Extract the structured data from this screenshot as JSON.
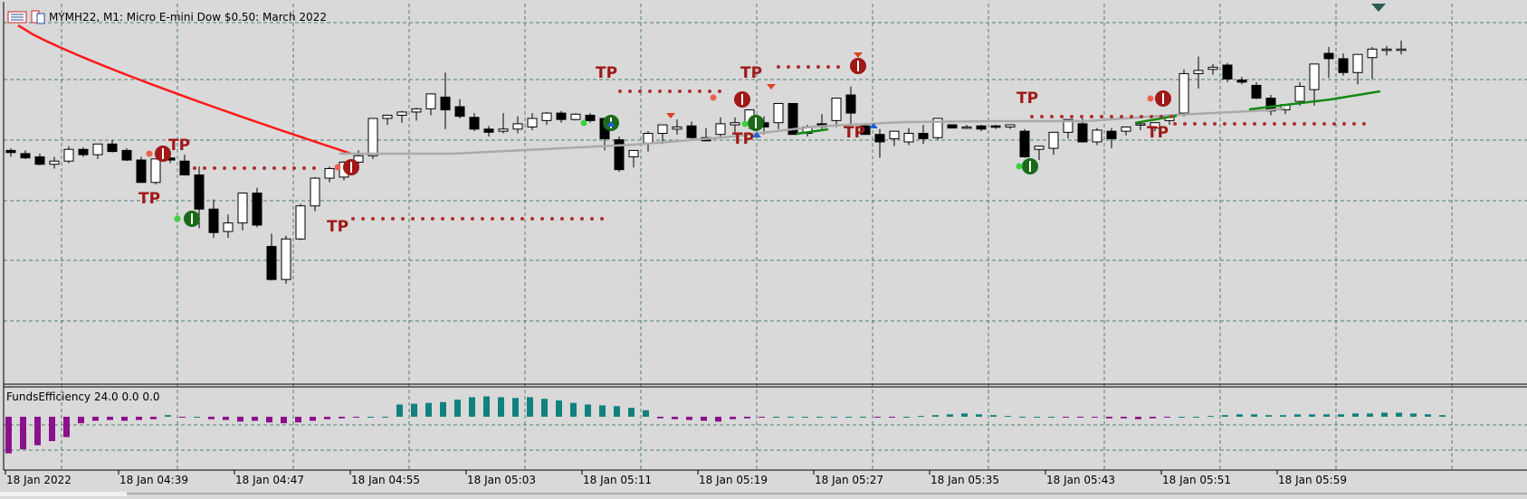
{
  "window": {
    "symbol_title": "MYMH22, M1:  Micro E-mini Dow $0.50: March 2022",
    "icons": [
      "chart-settings-icon",
      "trade-panel-icon"
    ]
  },
  "indicator": {
    "label": "FundsEfficiency 24.0 0.0 0.0"
  },
  "colors": {
    "background": "#d9d9d9",
    "grid": "#4f7f6f",
    "bull_candle": "#ffffff",
    "bear_candle": "#000000",
    "ma_gray": "#aaaaaa",
    "ma_red": "#ff1a1a",
    "ma_green": "#138a13",
    "tp_text": "#a01818",
    "tp_dots": "#b03030",
    "hist_pos": "#138080",
    "hist_neg": "#8b108b"
  },
  "chart_data": {
    "type": "candlestick",
    "x_tick_labels": [
      "18 Jan 2022",
      "18 Jan 04:39",
      "18 Jan 04:47",
      "18 Jan 04:55",
      "18 Jan 05:03",
      "18 Jan 05:11",
      "18 Jan 05:19",
      "18 Jan 05:27",
      "18 Jan 05:35",
      "18 Jan 05:43",
      "18 Jan 05:51",
      "18 Jan 05:59"
    ],
    "grid": true,
    "price_ylim": [
      0,
      100
    ],
    "candles": [
      {
        "o": 20,
        "h": 22,
        "l": 14,
        "c": 18
      },
      {
        "o": 17,
        "h": 20,
        "l": 12,
        "c": 13
      },
      {
        "o": 14,
        "h": 17,
        "l": 6,
        "c": 7
      },
      {
        "o": 7,
        "h": 14,
        "l": 3,
        "c": 10
      },
      {
        "o": 10,
        "h": 24,
        "l": 8,
        "c": 21
      },
      {
        "o": 21,
        "h": 23,
        "l": 14,
        "c": 16
      },
      {
        "o": 16,
        "h": 26,
        "l": 12,
        "c": 26
      },
      {
        "o": 26,
        "h": 30,
        "l": 18,
        "c": 19
      },
      {
        "o": 20,
        "h": 22,
        "l": 10,
        "c": 11
      },
      {
        "o": 11,
        "h": 14,
        "l": -10,
        "c": -10
      },
      {
        "o": -10,
        "h": 12,
        "l": -12,
        "c": 12
      },
      {
        "o": 13,
        "h": 16,
        "l": 8,
        "c": 11
      },
      {
        "o": 10,
        "h": 16,
        "l": -3,
        "c": -3
      },
      {
        "o": -3,
        "h": 5,
        "l": -53,
        "c": -35
      },
      {
        "o": -35,
        "h": -26,
        "l": -62,
        "c": -57
      },
      {
        "o": -56,
        "h": -40,
        "l": -62,
        "c": -48
      },
      {
        "o": -48,
        "h": -20,
        "l": -55,
        "c": -20
      },
      {
        "o": -20,
        "h": -15,
        "l": -52,
        "c": -50
      },
      {
        "o": -70,
        "h": -58,
        "l": -102,
        "c": -101
      },
      {
        "o": -101,
        "h": -60,
        "l": -105,
        "c": -63
      },
      {
        "o": -63,
        "h": -30,
        "l": -64,
        "c": -32
      },
      {
        "o": -32,
        "h": -5,
        "l": -37,
        "c": -6
      },
      {
        "o": -6,
        "h": 5,
        "l": -10,
        "c": 3
      },
      {
        "o": -5,
        "h": 10,
        "l": -8,
        "c": 9
      },
      {
        "o": 9,
        "h": 20,
        "l": 4,
        "c": 15
      },
      {
        "o": 15,
        "h": 50,
        "l": 12,
        "c": 50
      },
      {
        "o": 50,
        "h": 53,
        "l": 44,
        "c": 53
      },
      {
        "o": 53,
        "h": 57,
        "l": 46,
        "c": 56
      },
      {
        "o": 56,
        "h": 60,
        "l": 48,
        "c": 59
      },
      {
        "o": 59,
        "h": 73,
        "l": 53,
        "c": 73
      },
      {
        "o": 70,
        "h": 93,
        "l": 40,
        "c": 58
      },
      {
        "o": 61,
        "h": 68,
        "l": 50,
        "c": 52
      },
      {
        "o": 51,
        "h": 55,
        "l": 38,
        "c": 40
      },
      {
        "o": 40,
        "h": 43,
        "l": 33,
        "c": 37
      },
      {
        "o": 38,
        "h": 55,
        "l": 36,
        "c": 40
      },
      {
        "o": 40,
        "h": 52,
        "l": 36,
        "c": 45
      },
      {
        "o": 42,
        "h": 55,
        "l": 39,
        "c": 50
      },
      {
        "o": 48,
        "h": 56,
        "l": 44,
        "c": 55
      },
      {
        "o": 55,
        "h": 57,
        "l": 46,
        "c": 49
      },
      {
        "o": 49,
        "h": 55,
        "l": 48,
        "c": 54
      },
      {
        "o": 53,
        "h": 55,
        "l": 46,
        "c": 48
      },
      {
        "o": 50,
        "h": 50,
        "l": 20,
        "c": 31
      },
      {
        "o": 30,
        "h": 33,
        "l": 0,
        "c": 2
      },
      {
        "o": 14,
        "h": 20,
        "l": 4,
        "c": 20
      },
      {
        "o": 27,
        "h": 38,
        "l": 19,
        "c": 36
      },
      {
        "o": 36,
        "h": 44,
        "l": 26,
        "c": 44
      },
      {
        "o": 40,
        "h": 49,
        "l": 35,
        "c": 42
      },
      {
        "o": 43,
        "h": 47,
        "l": 31,
        "c": 32
      },
      {
        "o": 32,
        "h": 41,
        "l": 29,
        "c": 29
      },
      {
        "o": 35,
        "h": 51,
        "l": 31,
        "c": 45
      },
      {
        "o": 44,
        "h": 51,
        "l": 37,
        "c": 46
      },
      {
        "o": 45,
        "h": 58,
        "l": 40,
        "c": 58
      },
      {
        "o": 46,
        "h": 52,
        "l": 35,
        "c": 42
      },
      {
        "o": 46,
        "h": 64,
        "l": 40,
        "c": 64
      },
      {
        "o": 64,
        "h": 64,
        "l": 35,
        "c": 35
      },
      {
        "o": 36,
        "h": 44,
        "l": 33,
        "c": 42
      },
      {
        "o": 45,
        "h": 54,
        "l": 40,
        "c": 42
      },
      {
        "o": 48,
        "h": 69,
        "l": 42,
        "c": 69
      },
      {
        "o": 72,
        "h": 80,
        "l": 45,
        "c": 55
      },
      {
        "o": 43,
        "h": 45,
        "l": 35,
        "c": 35
      },
      {
        "o": 35,
        "h": 40,
        "l": 13,
        "c": 28
      },
      {
        "o": 31,
        "h": 38,
        "l": 24,
        "c": 38
      },
      {
        "o": 28,
        "h": 41,
        "l": 25,
        "c": 36
      },
      {
        "o": 36,
        "h": 44,
        "l": 26,
        "c": 31
      },
      {
        "o": 32,
        "h": 50,
        "l": 30,
        "c": 50
      },
      {
        "o": 44,
        "h": 44,
        "l": 41,
        "c": 41
      },
      {
        "o": 42,
        "h": 44,
        "l": 40,
        "c": 42
      },
      {
        "o": 43,
        "h": 44,
        "l": 38,
        "c": 40
      },
      {
        "o": 43,
        "h": 44,
        "l": 40,
        "c": 42
      },
      {
        "o": 42,
        "h": 44,
        "l": 40,
        "c": 44
      },
      {
        "o": 38,
        "h": 40,
        "l": 13,
        "c": 14
      },
      {
        "o": 21,
        "h": 24,
        "l": 11,
        "c": 24
      },
      {
        "o": 22,
        "h": 37,
        "l": 16,
        "c": 37
      },
      {
        "o": 37,
        "h": 49,
        "l": 31,
        "c": 49
      },
      {
        "o": 45,
        "h": 50,
        "l": 28,
        "c": 28
      },
      {
        "o": 28,
        "h": 41,
        "l": 25,
        "c": 39
      },
      {
        "o": 38,
        "h": 41,
        "l": 22,
        "c": 31
      },
      {
        "o": 38,
        "h": 42,
        "l": 34,
        "c": 42
      },
      {
        "o": 44,
        "h": 46,
        "l": 39,
        "c": 45
      },
      {
        "o": 41,
        "h": 46,
        "l": 38,
        "c": 46
      },
      {
        "o": 48,
        "h": 52,
        "l": 44,
        "c": 52
      },
      {
        "o": 55,
        "h": 96,
        "l": 52,
        "c": 92
      },
      {
        "o": 92,
        "h": 108,
        "l": 78,
        "c": 95
      },
      {
        "o": 96,
        "h": 101,
        "l": 91,
        "c": 98
      },
      {
        "o": 100,
        "h": 102,
        "l": 84,
        "c": 87
      },
      {
        "o": 86,
        "h": 89,
        "l": 82,
        "c": 84
      },
      {
        "o": 81,
        "h": 84,
        "l": 68,
        "c": 69
      },
      {
        "o": 69,
        "h": 72,
        "l": 53,
        "c": 57
      },
      {
        "o": 58,
        "h": 63,
        "l": 54,
        "c": 63
      },
      {
        "o": 66,
        "h": 84,
        "l": 62,
        "c": 80
      },
      {
        "o": 77,
        "h": 101,
        "l": 62,
        "c": 101
      },
      {
        "o": 111,
        "h": 117,
        "l": 88,
        "c": 106
      },
      {
        "o": 106,
        "h": 111,
        "l": 90,
        "c": 93
      },
      {
        "o": 93,
        "h": 110,
        "l": 82,
        "c": 110
      },
      {
        "o": 107,
        "h": 117,
        "l": 87,
        "c": 115
      },
      {
        "o": 115,
        "h": 118,
        "l": 109,
        "c": 115
      },
      {
        "o": 115,
        "h": 123,
        "l": 110,
        "c": 115
      }
    ],
    "histogram": [
      -45,
      -40,
      -35,
      -30,
      -25,
      -8,
      -5,
      -4,
      -5,
      -4,
      -3,
      2,
      -1,
      0,
      -3,
      -4,
      -6,
      -5,
      -7,
      -8,
      -7,
      -5,
      -3,
      -2,
      -1,
      0,
      0,
      15,
      16,
      17,
      18,
      21,
      24,
      25,
      24,
      23,
      24,
      22,
      20,
      17,
      15,
      14,
      13,
      11,
      8,
      -2,
      -3,
      -4,
      -5,
      -6,
      -3,
      -2,
      -1,
      0,
      0,
      0,
      0,
      0,
      0,
      0,
      -1,
      -1,
      0,
      1,
      2,
      3,
      4,
      3,
      2,
      1,
      0,
      0,
      0,
      -1,
      -1,
      -1,
      -2,
      -2,
      -3,
      -2,
      -1,
      0,
      0,
      1,
      2,
      3,
      3,
      2,
      2,
      3,
      3,
      3,
      3,
      4,
      4,
      5,
      5,
      4,
      3,
      2
    ]
  }
}
